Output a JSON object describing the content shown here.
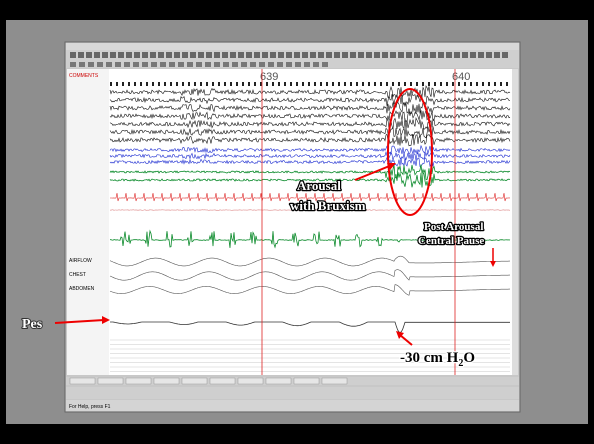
{
  "slide": {
    "annotations": {
      "arousal": "Arousal",
      "bruxism": "with Bruxism",
      "post_arousal": "Post Arousal",
      "central_pause": "Central Pause",
      "pes": "Pes",
      "pressure": {
        "text": "-30 cm H",
        "subscript": "2",
        "suffix": "O"
      }
    }
  },
  "window": {
    "epochs": [
      "639",
      "640"
    ],
    "channels": [
      "COMMENTS",
      "AIRFLOW",
      "CHEST",
      "ABDOMEN"
    ],
    "status": "For Help, press F1"
  }
}
